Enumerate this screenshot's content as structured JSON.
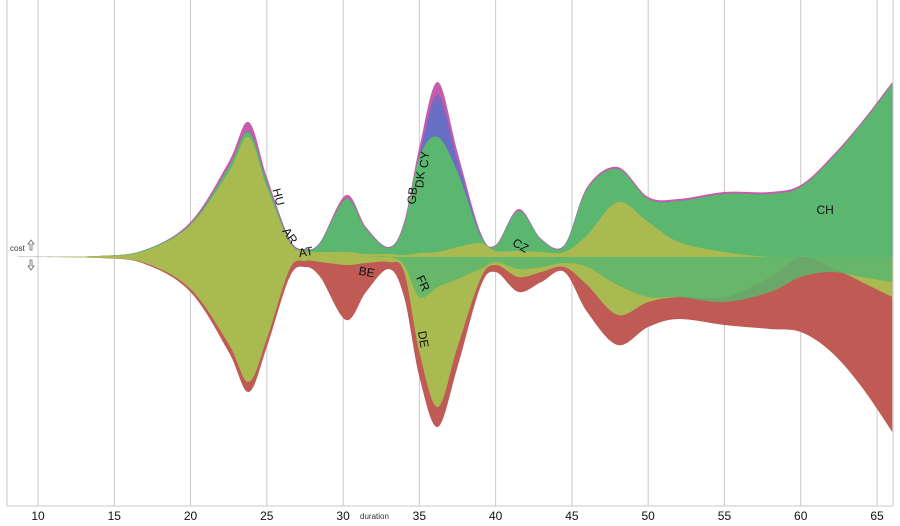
{
  "chart_data": {
    "type": "area",
    "title": "",
    "xlabel": "duration",
    "ylabel": "cost",
    "xlim": [
      8,
      66
    ],
    "x_ticks": [
      10,
      15,
      20,
      25,
      30,
      35,
      40,
      45,
      50,
      55,
      60,
      65
    ],
    "grid": true,
    "layout": "streamgraph (diverging around a center baseline)",
    "up_stream": {
      "x": [
        8,
        14,
        17,
        20,
        22.5,
        23.8,
        25,
        26.5,
        27.5,
        28.5,
        30.2,
        31.5,
        33,
        34,
        35,
        36.2,
        37.5,
        39,
        40,
        41.5,
        43,
        44.5,
        46,
        48,
        50,
        52,
        55,
        58,
        60,
        62,
        64,
        66
      ],
      "top": [
        0,
        1,
        7,
        35,
        95,
        135,
        80,
        18,
        8,
        15,
        62,
        30,
        10,
        35,
        110,
        175,
        105,
        25,
        12,
        48,
        18,
        12,
        70,
        90,
        60,
        58,
        65,
        65,
        72,
        100,
        135,
        175
      ],
      "green": [
        0,
        1,
        7,
        33,
        90,
        125,
        75,
        16,
        7,
        14,
        58,
        28,
        9,
        32,
        100,
        120,
        85,
        22,
        11,
        46,
        17,
        11,
        68,
        88,
        58,
        56,
        63,
        63,
        70,
        98,
        133,
        173
      ],
      "olive": [
        0,
        1,
        6,
        32,
        85,
        120,
        70,
        15,
        6,
        5,
        5,
        3,
        3,
        2,
        4,
        5,
        10,
        14,
        6,
        6,
        5,
        5,
        22,
        55,
        35,
        15,
        5,
        0,
        0,
        0,
        0,
        0
      ]
    },
    "down_stream": {
      "x": [
        8,
        14,
        17,
        20,
        22.5,
        23.8,
        25,
        26.5,
        27.5,
        28.5,
        30.2,
        31.5,
        33,
        34,
        35,
        36.2,
        37.5,
        39,
        40,
        41.5,
        43,
        44.5,
        46,
        48,
        50,
        52,
        55,
        58,
        60,
        62,
        64,
        66
      ],
      "red": [
        0,
        1,
        7,
        35,
        95,
        135,
        90,
        20,
        10,
        20,
        63,
        35,
        12,
        40,
        120,
        170,
        110,
        30,
        15,
        35,
        25,
        15,
        55,
        88,
        70,
        62,
        68,
        72,
        75,
        95,
        130,
        175
      ],
      "olive": [
        0,
        1,
        6,
        32,
        87,
        125,
        82,
        12,
        4,
        5,
        8,
        6,
        5,
        15,
        95,
        150,
        90,
        22,
        8,
        20,
        15,
        10,
        28,
        58,
        45,
        40,
        40,
        20,
        0,
        10,
        25,
        40
      ],
      "green": [
        0,
        0,
        0,
        0,
        0,
        0,
        0,
        0,
        0,
        0,
        0,
        0,
        0,
        8,
        40,
        30,
        22,
        12,
        5,
        12,
        10,
        6,
        10,
        28,
        40,
        40,
        45,
        35,
        20,
        15,
        20,
        25
      ]
    },
    "series": [
      {
        "name": "HU",
        "color": "#a8ba50"
      },
      {
        "name": "AR",
        "color": "#a8ba50"
      },
      {
        "name": "AT",
        "color": "#a8ba50"
      },
      {
        "name": "BE",
        "color": "#c0504d"
      },
      {
        "name": "GB",
        "color": "#52b26b"
      },
      {
        "name": "DK",
        "color": "#9d62b8"
      },
      {
        "name": "CY",
        "color": "#c04fa6"
      },
      {
        "name": "FR",
        "color": "#52b26b"
      },
      {
        "name": "DE",
        "color": "#b95a56"
      },
      {
        "name": "CZ",
        "color": "#52b26b"
      },
      {
        "name": "CH",
        "color": "#52b26b"
      }
    ],
    "labels": [
      {
        "text": "HU",
        "x": 25.5,
        "rotate": 75
      },
      {
        "text": "AR",
        "x": 26.3,
        "rotate": 55
      },
      {
        "text": "AT",
        "x": 27.6,
        "rotate": -10
      },
      {
        "text": "BE",
        "x": 31.5,
        "rotate": 10
      },
      {
        "text": "GB",
        "x": 34.8,
        "rotate": -85
      },
      {
        "text": "FR",
        "x": 35.0,
        "rotate": 65
      },
      {
        "text": "DE",
        "x": 35.0,
        "rotate": 80
      },
      {
        "text": "DK",
        "x": 35.3,
        "rotate": -85
      },
      {
        "text": "CY",
        "x": 35.6,
        "rotate": -85
      },
      {
        "text": "CZ",
        "x": 41.5,
        "rotate": 30
      },
      {
        "text": "CH",
        "x": 61.6,
        "rotate": 0
      }
    ],
    "colors": {
      "green": "#5bb66f",
      "olive": "#a8ba50",
      "red": "#bf5a55",
      "purple": "#7a67c0",
      "magenta": "#c354a7",
      "blue": "#5575c8"
    }
  }
}
